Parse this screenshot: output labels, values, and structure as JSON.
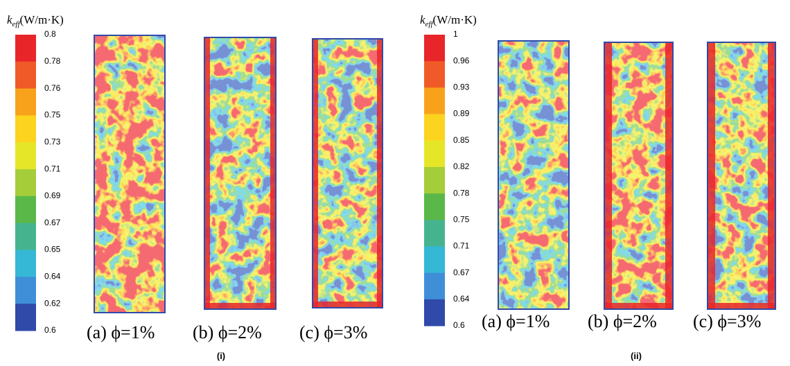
{
  "panels": [
    {
      "label": "(i)",
      "symbol": "k",
      "subscript": "eff",
      "unit": "(W/m·K)",
      "ticks": [
        "0.8",
        "0.78",
        "0.76",
        "0.75",
        "0.73",
        "0.71",
        "0.69",
        "0.67",
        "0.65",
        "0.64",
        "0.62",
        "0.6"
      ],
      "captions": [
        "(a) ϕ=1%",
        "(b) ϕ=2%",
        "(c) ϕ=3%"
      ]
    },
    {
      "label": "(ii)",
      "symbol": "k",
      "subscript": "eff",
      "unit": "(W/m·K)",
      "ticks": [
        "1",
        "0.96",
        "0.93",
        "0.89",
        "0.85",
        "0.82",
        "0.78",
        "0.75",
        "0.71",
        "0.67",
        "0.64",
        "0.6"
      ],
      "captions": [
        "(a) ϕ=1%",
        "(b) ϕ=2%",
        "(c) ϕ=3%"
      ]
    }
  ],
  "colors": [
    "#e8262a",
    "#f05a28",
    "#f8a21c",
    "#fcd31f",
    "#e6e629",
    "#a5cd39",
    "#5ab848",
    "#45b48e",
    "#35b7d6",
    "#3f8fd8",
    "#2f4aa8"
  ]
}
